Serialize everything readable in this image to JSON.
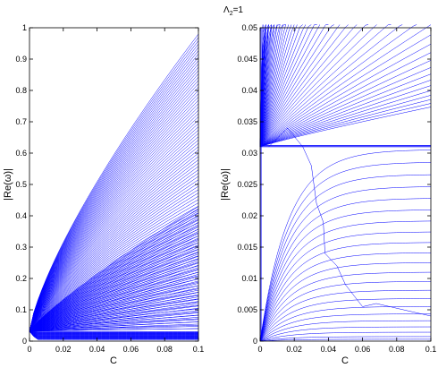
{
  "figure": {
    "suptitle": "Λ",
    "suptitle_sub": "2",
    "suptitle_rest": "=1"
  },
  "chart_data": [
    {
      "type": "line",
      "panel": "left",
      "title": "",
      "xlabel": "C",
      "ylabel": "|Re(ω)|",
      "xlim": [
        0,
        0.1
      ],
      "ylim": [
        0,
        1
      ],
      "xticks": [
        0,
        0.02,
        0.04,
        0.06,
        0.08,
        0.1
      ],
      "xtick_labels": [
        "0",
        "0.02",
        "0.04",
        "0.06",
        "0.08",
        "0.1"
      ],
      "yticks": [
        0,
        0.1,
        0.2,
        0.3,
        0.4,
        0.5,
        0.6,
        0.7,
        0.8,
        0.9,
        1
      ],
      "ytick_labels": [
        "0",
        "0.1",
        "0.2",
        "0.3",
        "0.4",
        "0.5",
        "0.6",
        "0.7",
        "0.8",
        "0.9",
        "1"
      ],
      "grid": false,
      "line_color": "#0000ff",
      "families": [
        {
          "description": "upper fan",
          "start": [
            0,
            0.031
          ],
          "end_y_range": [
            0.04,
            0.98
          ],
          "shape": "power",
          "exponent": 0.75,
          "count": 90
        },
        {
          "description": "middle fan",
          "start": [
            0,
            0.031
          ],
          "end_y_range": [
            0.04,
            0.43
          ],
          "shape": "power",
          "exponent": 0.85,
          "count": 55
        },
        {
          "description": "lower band",
          "end_y_range": [
            0.005,
            0.03
          ],
          "count": 25
        }
      ]
    },
    {
      "type": "line",
      "panel": "right",
      "title": "",
      "xlabel": "C",
      "ylabel": "|Re(ω)|",
      "xlim": [
        0,
        0.1
      ],
      "ylim": [
        0,
        0.05
      ],
      "xticks": [
        0,
        0.02,
        0.04,
        0.06,
        0.08,
        0.1
      ],
      "xtick_labels": [
        "0",
        "0.02",
        "0.04",
        "0.06",
        "0.08",
        "0.1"
      ],
      "yticks": [
        0,
        0.005,
        0.01,
        0.015,
        0.02,
        0.025,
        0.03,
        0.035,
        0.04,
        0.045,
        0.05
      ],
      "ytick_labels": [
        "0",
        "0.005",
        "0.01",
        "0.015",
        "0.02",
        "0.025",
        "0.03",
        "0.035",
        "0.04",
        "0.045",
        "0.05"
      ],
      "grid": false,
      "line_color": "#0000ff",
      "threshold_y": 0.031,
      "families": [
        {
          "description": "curves rising above threshold",
          "start": [
            0,
            0.031
          ],
          "count": 60
        },
        {
          "description": "curves below threshold",
          "start": [
            0,
            0
          ],
          "end_y_range": [
            0.0003,
            0.0305
          ],
          "count": 22
        },
        {
          "description": "bifurcating branch",
          "points": [
            [
              0.005,
              0.031
            ],
            [
              0.016,
              0.034
            ],
            [
              0.025,
              0.031
            ],
            [
              0.03,
              0.028
            ],
            [
              0.033,
              0.022
            ],
            [
              0.037,
              0.019
            ],
            [
              0.038,
              0.014
            ],
            [
              0.045,
              0.012
            ],
            [
              0.05,
              0.009
            ],
            [
              0.06,
              0.0055
            ],
            [
              0.068,
              0.006
            ],
            [
              0.1,
              0.004
            ]
          ]
        }
      ]
    }
  ]
}
